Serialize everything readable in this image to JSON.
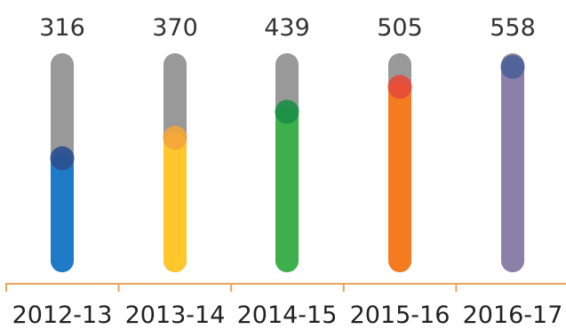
{
  "chart_data": {
    "type": "bar",
    "title": "",
    "xlabel": "",
    "ylabel": "",
    "categories": [
      "2012-13",
      "2013-14",
      "2014-15",
      "2015-16",
      "2016-17"
    ],
    "values": [
      316,
      370,
      439,
      505,
      558
    ],
    "ylim": [
      0,
      580
    ],
    "grid": false,
    "legend": "none",
    "colors": {
      "track": "#999999",
      "bars": [
        "#1f7bc8",
        "#ffc72c",
        "#3db04b",
        "#f47b20",
        "#8a80aa"
      ],
      "knobs": [
        "#2a4f8f",
        "#f4a53a",
        "#1a8f47",
        "#e64a3a",
        "#4d5f98"
      ],
      "axis": "#e8a45a"
    }
  }
}
